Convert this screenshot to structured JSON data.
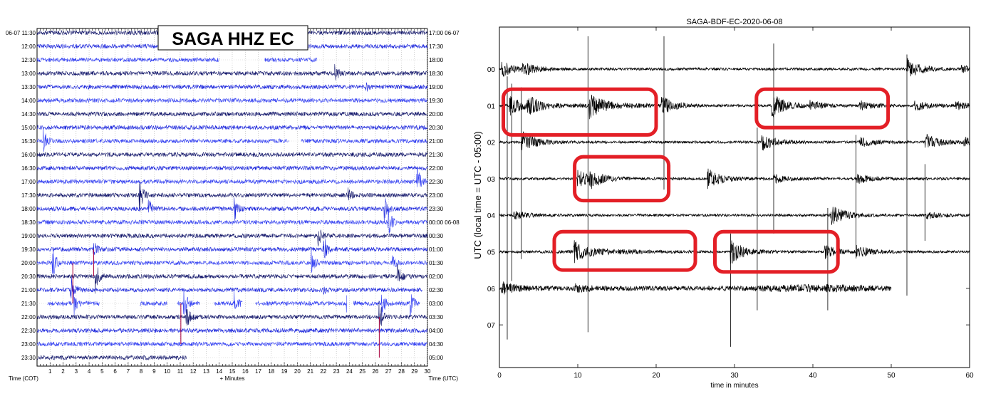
{
  "chart_data": [
    {
      "type": "line",
      "title": "SAGA HHZ EC",
      "xlabel": "+ Minutes",
      "left_axis_label": "Time (COT)",
      "right_axis_label": "Time (UTC)",
      "xlim": [
        0,
        30
      ],
      "x_ticks": [
        1,
        2,
        3,
        4,
        5,
        6,
        7,
        8,
        9,
        10,
        11,
        12,
        13,
        14,
        15,
        16,
        17,
        18,
        19,
        20,
        21,
        22,
        23,
        24,
        25,
        26,
        27,
        28,
        29,
        30
      ],
      "grid": true,
      "colors": [
        "#0b0f66",
        "#1520dc",
        "#2f3cf2"
      ],
      "highlight_color": "#b0124a",
      "rows": [
        {
          "cot": "06-07 11:30",
          "utc": "17:00 06-07"
        },
        {
          "cot": "12:00",
          "utc": "17:30"
        },
        {
          "cot": "12:30",
          "utc": "18:00",
          "gaps": [
            [
              14.0,
              17.5
            ],
            [
              21.5,
              30
            ]
          ]
        },
        {
          "cot": "13:00",
          "utc": "18:30",
          "events": [
            [
              22.9,
              0.8
            ]
          ]
        },
        {
          "cot": "13:30",
          "utc": "19:00",
          "events": [
            [
              25.3,
              0.3
            ]
          ]
        },
        {
          "cot": "14:00",
          "utc": "19:30"
        },
        {
          "cot": "14:30",
          "utc": "20:00"
        },
        {
          "cot": "15:00",
          "utc": "20:30"
        },
        {
          "cot": "15:30",
          "utc": "21:00",
          "gaps": [
            [
              19.3,
              20.3
            ]
          ],
          "events": [
            [
              0.5,
              1.0
            ]
          ]
        },
        {
          "cot": "16:00",
          "utc": "21:30"
        },
        {
          "cot": "16:30",
          "utc": "22:00"
        },
        {
          "cot": "17:00",
          "utc": "22:30",
          "events": [
            [
              29.2,
              1.3
            ]
          ]
        },
        {
          "cot": "17:30",
          "utc": "23:00",
          "events": [
            [
              7.9,
              1.3
            ],
            [
              23.9,
              0.6
            ]
          ]
        },
        {
          "cot": "18:00",
          "utc": "23:30",
          "events": [
            [
              8.6,
              0.7
            ],
            [
              15.2,
              0.9
            ],
            [
              26.7,
              1.0
            ]
          ]
        },
        {
          "cot": "18:30",
          "utc": "00:00 06-08",
          "events": [
            [
              27.0,
              1.3
            ]
          ]
        },
        {
          "cot": "19:00",
          "utc": "00:30",
          "events": [
            [
              21.6,
              0.8
            ]
          ]
        },
        {
          "cot": "19:30",
          "utc": "01:00",
          "events": [
            [
              4.3,
              0.8
            ],
            [
              22.0,
              1.3
            ]
          ]
        },
        {
          "cot": "20:00",
          "utc": "01:30",
          "events": [
            [
              1.2,
              1.3
            ],
            [
              21.1,
              1.0
            ],
            [
              27.3,
              0.6
            ]
          ]
        },
        {
          "cot": "20:30",
          "utc": "02:00",
          "events": [
            [
              4.5,
              1.3
            ],
            [
              27.7,
              1.0
            ]
          ]
        },
        {
          "cot": "21:00",
          "utc": "02:30",
          "gaps": [
            [
              29.6,
              30
            ]
          ],
          "events": [
            [
              2.6,
              1.3
            ],
            [
              22.0,
              0.3
            ]
          ]
        },
        {
          "cot": "21:30",
          "utc": "03:00",
          "gaps": [
            [
              0,
              0.8
            ],
            [
              4.8,
              7.9
            ],
            [
              10.0,
              10.8
            ],
            [
              12.5,
              13.6
            ],
            [
              15.8,
              16.8
            ],
            [
              23.8,
              24.3
            ],
            [
              29.4,
              30
            ]
          ],
          "events": [
            [
              2.8,
              1.1
            ],
            [
              11.3,
              1.3
            ],
            [
              15.2,
              0.9
            ],
            [
              23.8,
              0.9
            ],
            [
              26.5,
              1.0
            ],
            [
              28.7,
              0.9
            ]
          ]
        },
        {
          "cot": "22:00",
          "utc": "03:30",
          "events": [
            [
              11.5,
              1.0
            ],
            [
              26.3,
              1.3
            ]
          ]
        },
        {
          "cot": "22:30",
          "utc": "04:00"
        },
        {
          "cot": "23:00",
          "utc": "04:30"
        },
        {
          "cot": "23:30",
          "utc": "05:00",
          "gaps": [
            [
              11.5,
              30
            ]
          ]
        }
      ],
      "highlight_spikes": [
        [
          2.75,
          17,
          20
        ],
        [
          4.35,
          16,
          18
        ],
        [
          11.05,
          20,
          23
        ],
        [
          26.3,
          21,
          24
        ]
      ]
    },
    {
      "type": "line",
      "title": "SAGA-BDF-EC-2020-06-08",
      "xlabel": "time in minutes",
      "ylabel": "UTC (local time = UTC - 05:00)",
      "xlim": [
        0,
        60
      ],
      "x_ticks": [
        0,
        10,
        20,
        30,
        40,
        50,
        60
      ],
      "rows": [
        "00",
        "01",
        "02",
        "03",
        "04",
        "05",
        "06",
        "07"
      ],
      "y_ticks": [
        "00",
        "01",
        "02",
        "03",
        "04",
        "05",
        "06",
        "07"
      ],
      "trace_color": "#000000",
      "traces": [
        {
          "hour": "00",
          "end": 60,
          "events": [
            [
              0.3,
              0.7
            ],
            [
              3.0,
              0.5
            ],
            [
              52.0,
              1.0
            ],
            [
              59.0,
              0.3
            ]
          ]
        },
        {
          "hour": "01",
          "end": 60,
          "events": [
            [
              1.3,
              0.9
            ],
            [
              3.6,
              0.8
            ],
            [
              11.5,
              1.1
            ],
            [
              20.7,
              0.8
            ],
            [
              34.8,
              1.1
            ],
            [
              39.6,
              0.4
            ],
            [
              46.0,
              0.4
            ],
            [
              53.0,
              0.5
            ],
            [
              58.2,
              0.4
            ]
          ]
        },
        {
          "hour": "02",
          "end": 60,
          "events": [
            [
              2.9,
              1.0
            ],
            [
              33.5,
              0.8
            ],
            [
              46.0,
              0.5
            ],
            [
              54.3,
              0.8
            ],
            [
              59.3,
              0.4
            ]
          ]
        },
        {
          "hour": "03",
          "end": 60,
          "events": [
            [
              10.0,
              0.8
            ],
            [
              11.5,
              0.7
            ],
            [
              26.6,
              0.9
            ],
            [
              35.0,
              0.4
            ],
            [
              45.6,
              0.5
            ]
          ]
        },
        {
          "hour": "04",
          "end": 60,
          "events": [
            [
              1.8,
              0.4
            ],
            [
              42.3,
              1.0
            ],
            [
              54.5,
              0.3
            ]
          ]
        },
        {
          "hour": "05",
          "end": 60,
          "events": [
            [
              9.5,
              1.0
            ],
            [
              29.5,
              1.1
            ],
            [
              41.5,
              0.6
            ],
            [
              45.5,
              0.6
            ]
          ]
        },
        {
          "hour": "06",
          "end": 50,
          "events": [
            [
              0.3,
              0.5
            ],
            [
              9.5,
              0.3
            ]
          ]
        },
        {
          "hour": "07",
          "end": 0,
          "events": []
        }
      ],
      "vertical_lines": [
        [
          1.0,
          0.2,
          7.4
        ],
        [
          1.6,
          0.4,
          5.8
        ],
        [
          2.8,
          0.5,
          5.2
        ],
        [
          11.3,
          -0.9,
          7.2
        ],
        [
          21.0,
          -0.9,
          3.3
        ],
        [
          29.5,
          4.5,
          7.6
        ],
        [
          32.9,
          1.6,
          6.6
        ],
        [
          35.0,
          -0.7,
          4.5
        ],
        [
          41.9,
          3.8,
          6.6
        ],
        [
          45.5,
          1.8,
          5.0
        ],
        [
          52.0,
          -0.4,
          6.2
        ],
        [
          54.3,
          2.6,
          4.7
        ]
      ],
      "highlight_boxes": [
        [
          0.5,
          20.0,
          0.55,
          1.8
        ],
        [
          32.8,
          49.6,
          0.55,
          1.6
        ],
        [
          9.6,
          21.6,
          2.4,
          3.6
        ],
        [
          7.0,
          25.0,
          4.45,
          5.5
        ],
        [
          27.5,
          43.2,
          4.45,
          5.55
        ]
      ],
      "highlight_color": "#e31f26"
    }
  ]
}
